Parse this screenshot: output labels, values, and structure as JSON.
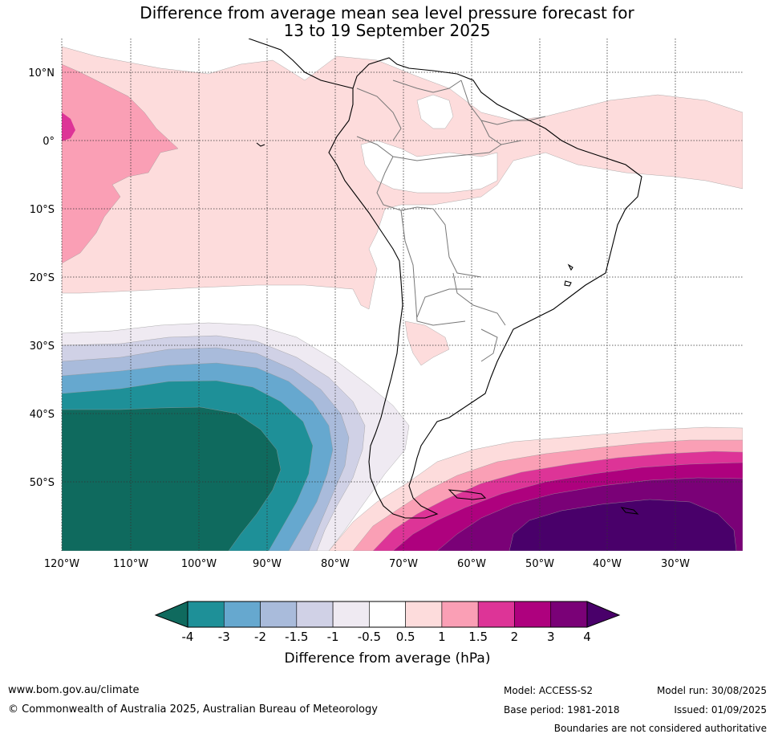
{
  "title": {
    "line1": "Difference from average mean sea level pressure forecast for",
    "line2": "13 to 19 September 2025"
  },
  "map": {
    "lat_labels": [
      "10°N",
      "0°",
      "10°S",
      "20°S",
      "30°S",
      "40°S",
      "50°S"
    ],
    "lon_labels": [
      "120°W",
      "110°W",
      "100°W",
      "90°W",
      "80°W",
      "70°W",
      "60°W",
      "50°W",
      "40°W",
      "30°W"
    ]
  },
  "colorbar": {
    "title": "Difference from average (hPa)",
    "ticks": [
      "-4",
      "-3",
      "-2",
      "-1.5",
      "-1",
      "-0.5",
      "0.5",
      "1",
      "1.5",
      "2",
      "3",
      "4"
    ],
    "colors": [
      "#0f6a5e",
      "#1e9098",
      "#66a8cf",
      "#a9bbdb",
      "#d0d1e6",
      "#efeaf2",
      "#ffffff",
      "#fddcdc",
      "#fa9fb5",
      "#dd3497",
      "#ae017e",
      "#7a0177",
      "#49006a"
    ]
  },
  "footer": {
    "website": "www.bom.gov.au/climate",
    "copyright": "© Commonwealth of Australia 2025, Australian Bureau of Meteorology",
    "model": "Model: ACCESS-S2",
    "base_period": "Base period: 1981-2018",
    "model_run": "Model run: 30/08/2025",
    "issued": "Issued: 01/09/2025",
    "disclaimer": "Boundaries are not considered authoritative"
  }
}
